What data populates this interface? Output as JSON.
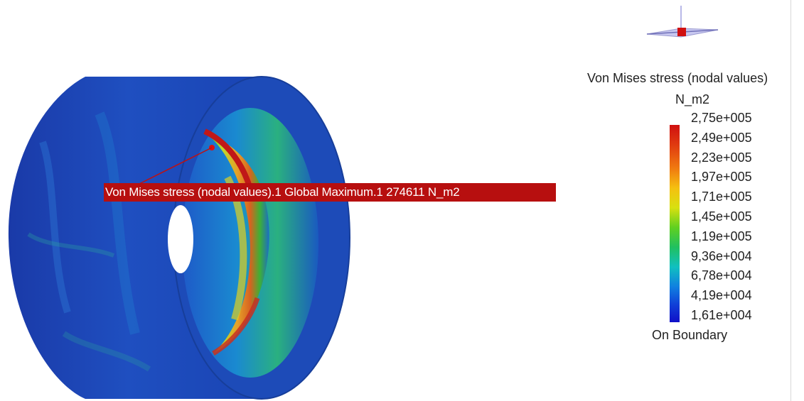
{
  "annotation": {
    "label": "Von Mises stress (nodal values).1  Global Maximum.1  274611 N_m2"
  },
  "legend": {
    "title": "Von Mises stress (nodal values)",
    "unit": "N_m2",
    "ticks": [
      "2,75e+005",
      "2,49e+005",
      "2,23e+005",
      "1,97e+005",
      "1,71e+005",
      "1,45e+005",
      "1,19e+005",
      "9,36e+004",
      "6,78e+004",
      "4,19e+004",
      "1,61e+004"
    ],
    "footer": "On Boundary"
  },
  "colors": {
    "accent_red": "#b70f0f",
    "model_blue": "#1a3fae",
    "max_stress": "#d01010",
    "min_stress": "#1010c8"
  },
  "icons": {
    "compass": "axis-compass-icon"
  }
}
